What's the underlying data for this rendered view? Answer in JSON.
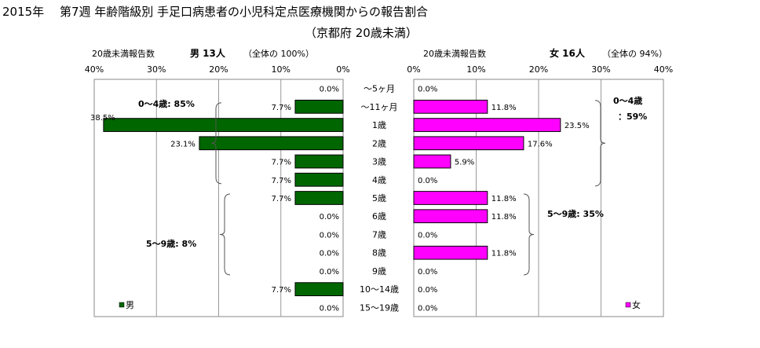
{
  "chart_data": {
    "type": "bar",
    "title": "2015年　 第7週 年齢階級別 手足口病患者の小児科定点医療機関からの報告割合",
    "subtitle": "（京都府 20歳未満）",
    "categories": [
      "～5ヶ月",
      "～11ヶ月",
      "1歳",
      "2歳",
      "3歳",
      "4歳",
      "5歳",
      "6歳",
      "7歳",
      "8歳",
      "9歳",
      "10～14歳",
      "15～19歳"
    ],
    "xlim": [
      0,
      40
    ],
    "ticks": [
      "0%",
      "10%",
      "20%",
      "30%",
      "40%"
    ],
    "grid": true,
    "panels": {
      "male": {
        "label": "20歳未満報告数",
        "count_label": "男 13人",
        "share_label": "（全体の 100%）",
        "legend": "男",
        "color": "#006600",
        "values": [
          0.0,
          7.7,
          38.5,
          23.1,
          7.7,
          7.7,
          7.7,
          0.0,
          0.0,
          0.0,
          0.0,
          7.7,
          0.0
        ],
        "value_labels": [
          "0.0%",
          "7.7%",
          "38.5%",
          "23.1%",
          "7.7%",
          "7.7%",
          "7.7%",
          "0.0%",
          "0.0%",
          "0.0%",
          "0.0%",
          "7.7%",
          "0.0%"
        ],
        "annotations": [
          "0～4歳: 85%",
          "5～9歳: 8%"
        ]
      },
      "female": {
        "label": "20歳未満報告数",
        "count_label": "女 16人",
        "share_label": "（全体の 94%）",
        "legend": "女",
        "color": "#ff00ff",
        "values": [
          0.0,
          11.8,
          23.5,
          17.6,
          5.9,
          0.0,
          11.8,
          11.8,
          0.0,
          11.8,
          0.0,
          0.0,
          0.0
        ],
        "value_labels": [
          "0.0%",
          "11.8%",
          "23.5%",
          "17.6%",
          "5.9%",
          "0.0%",
          "11.8%",
          "11.8%",
          "0.0%",
          "11.8%",
          "0.0%",
          "0.0%",
          "0.0%"
        ],
        "annotations": [
          "0～4歳",
          "：59%",
          "5～9歳: 35%"
        ]
      }
    }
  }
}
